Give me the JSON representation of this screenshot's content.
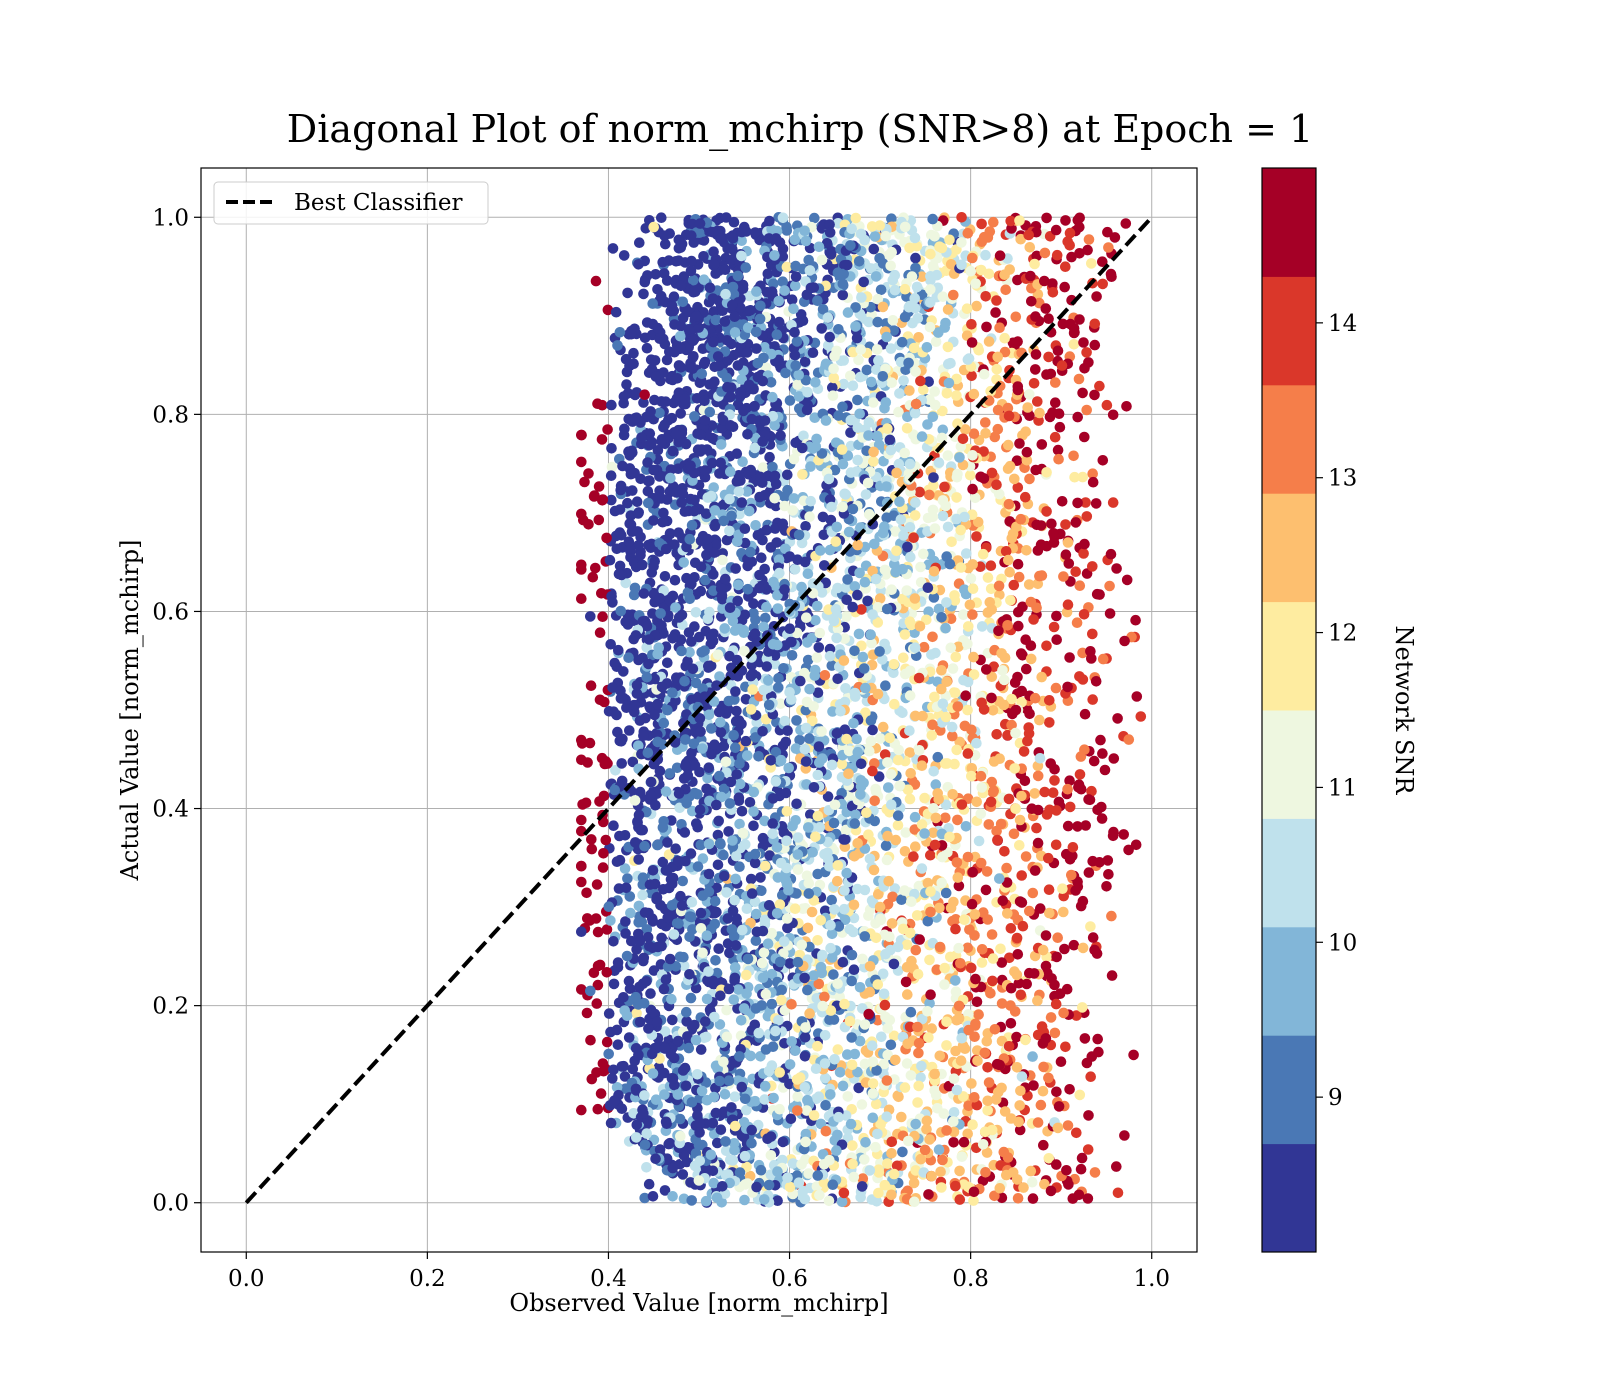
{
  "chart_data": {
    "type": "scatter",
    "title": "Diagonal Plot of norm_mchirp (SNR>8) at Epoch = 1",
    "xlabel": "Observed Value [norm_mchirp]",
    "ylabel": "Actual Value [norm_mchirp]",
    "xlim": [
      -0.05,
      1.05
    ],
    "ylim": [
      -0.05,
      1.05
    ],
    "x_ticks": [
      "0.0",
      "0.2",
      "0.4",
      "0.6",
      "0.8",
      "1.0"
    ],
    "y_ticks": [
      "0.0",
      "0.2",
      "0.4",
      "0.6",
      "0.8",
      "1.0"
    ],
    "grid": true,
    "legend": {
      "placement": "top-left",
      "entries": [
        {
          "label": "Best Classifier",
          "style": "black dashed line"
        }
      ]
    },
    "reference_line": {
      "name": "Best Classifier",
      "x": [
        0.0,
        1.0
      ],
      "y": [
        0.0,
        1.0
      ],
      "color": "#000000"
    },
    "colorbar": {
      "label": "Network SNR",
      "range": [
        8.0,
        15.0
      ],
      "ticks": [
        "9",
        "10",
        "11",
        "12",
        "13",
        "14"
      ],
      "bins": [
        {
          "from": 8.0,
          "to": 8.7,
          "color": "#313695"
        },
        {
          "from": 8.7,
          "to": 9.4,
          "color": "#4a78b5"
        },
        {
          "from": 9.4,
          "to": 10.1,
          "color": "#82b6d8"
        },
        {
          "from": 10.1,
          "to": 10.8,
          "color": "#bfe1ec"
        },
        {
          "from": 10.8,
          "to": 11.5,
          "color": "#eef7e0"
        },
        {
          "from": 11.5,
          "to": 12.2,
          "color": "#feeca0"
        },
        {
          "from": 12.2,
          "to": 12.9,
          "color": "#fdbf6f"
        },
        {
          "from": 12.9,
          "to": 13.6,
          "color": "#f57e4a"
        },
        {
          "from": 13.6,
          "to": 14.3,
          "color": "#da372a"
        },
        {
          "from": 14.3,
          "to": 15.0,
          "color": "#a50026"
        }
      ]
    },
    "points": {
      "x_range": [
        0.37,
        0.99
      ],
      "y_range": [
        0.0,
        1.0
      ],
      "count_approx": 6000,
      "sampled_points": [
        {
          "x": 0.38,
          "y": 0.595,
          "snr": 8.3
        },
        {
          "x": 0.37,
          "y": 0.275,
          "snr": 8.3
        },
        {
          "x": 0.38,
          "y": 0.215,
          "snr": 9.0
        },
        {
          "x": 0.41,
          "y": 0.87,
          "snr": 9.0
        },
        {
          "x": 0.44,
          "y": 0.82,
          "snr": 14.7
        },
        {
          "x": 0.45,
          "y": 0.99,
          "snr": 11.8
        },
        {
          "x": 0.55,
          "y": 0.99,
          "snr": 8.3
        },
        {
          "x": 0.79,
          "y": 1.0,
          "snr": 14.0
        },
        {
          "x": 0.92,
          "y": 0.99,
          "snr": 14.7
        },
        {
          "x": 0.97,
          "y": 0.57,
          "snr": 14.7
        },
        {
          "x": 0.98,
          "y": 0.15,
          "snr": 14.7
        },
        {
          "x": 0.52,
          "y": 0.005,
          "snr": 9.8
        },
        {
          "x": 0.66,
          "y": 0.01,
          "snr": 14.0
        },
        {
          "x": 0.6,
          "y": 0.6,
          "snr": 9.5
        },
        {
          "x": 0.7,
          "y": 0.3,
          "snr": 12.5
        },
        {
          "x": 0.85,
          "y": 0.5,
          "snr": 14.7
        }
      ]
    }
  }
}
